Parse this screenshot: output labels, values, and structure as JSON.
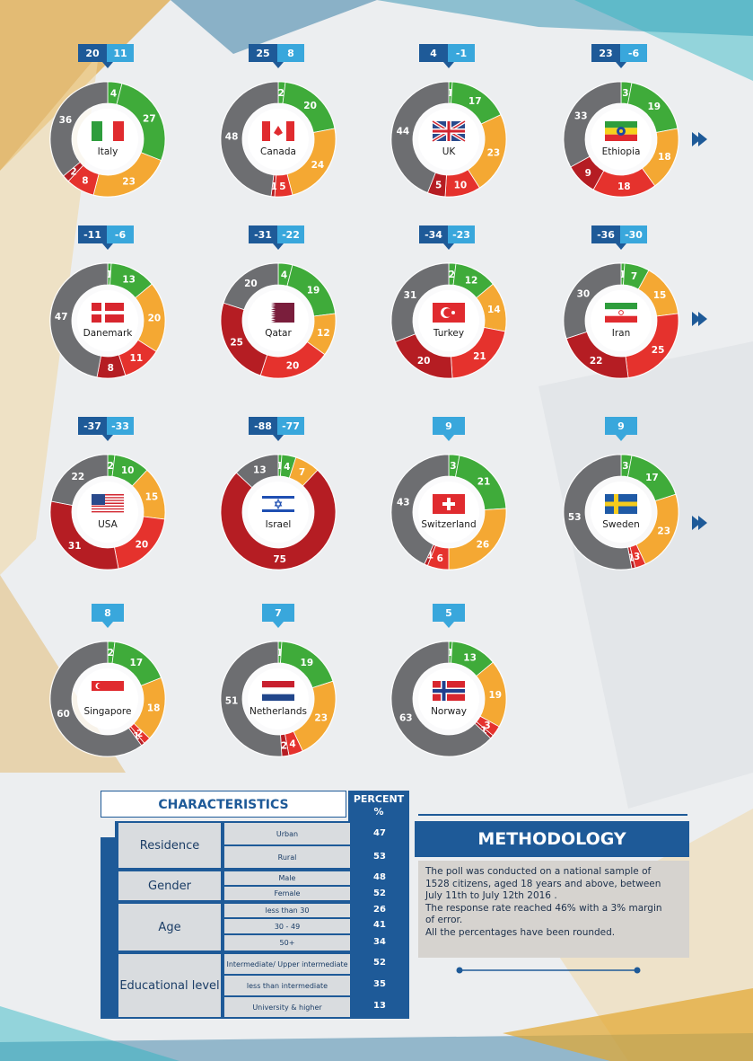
{
  "colors": {
    "green": "#3fab3a",
    "orange": "#f4a833",
    "red": "#e5322d",
    "darkred": "#b51d23",
    "gray": "#6d6e71",
    "navy": "#1e5a98",
    "lightblue": "#39a7dc"
  },
  "chart_data": [
    {
      "type": "pie",
      "country": "Italy",
      "badge": [
        "20",
        "11"
      ],
      "values": [
        4,
        27,
        23,
        8,
        2,
        36
      ],
      "flag": "italy"
    },
    {
      "type": "pie",
      "country": "Canada",
      "badge": [
        "25",
        "8"
      ],
      "values": [
        2,
        20,
        24,
        5,
        1,
        48
      ],
      "flag": "canada"
    },
    {
      "type": "pie",
      "country": "UK",
      "badge": [
        "4",
        "-1"
      ],
      "values": [
        1,
        17,
        23,
        10,
        5,
        44
      ],
      "flag": "uk"
    },
    {
      "type": "pie",
      "country": "Ethiopia",
      "badge": [
        "23",
        "-6"
      ],
      "values": [
        3,
        19,
        18,
        18,
        9,
        33
      ],
      "flag": "ethiopia"
    },
    {
      "type": "pie",
      "country": "Danemark",
      "badge": [
        "-11",
        "-6"
      ],
      "values": [
        1,
        13,
        20,
        11,
        8,
        47
      ],
      "flag": "denmark"
    },
    {
      "type": "pie",
      "country": "Qatar",
      "badge": [
        "-31",
        "-22"
      ],
      "values": [
        4,
        19,
        12,
        20,
        25,
        20
      ],
      "flag": "qatar"
    },
    {
      "type": "pie",
      "country": "Turkey",
      "badge": [
        "-34",
        "-23"
      ],
      "values": [
        2,
        12,
        14,
        21,
        20,
        31
      ],
      "flag": "turkey"
    },
    {
      "type": "pie",
      "country": "Iran",
      "badge": [
        "-36",
        "-30"
      ],
      "values": [
        1,
        7,
        15,
        25,
        22,
        30
      ],
      "flag": "iran"
    },
    {
      "type": "pie",
      "country": "USA",
      "badge": [
        "-37",
        "-33"
      ],
      "values": [
        2,
        10,
        15,
        20,
        31,
        22
      ],
      "flag": "usa"
    },
    {
      "type": "pie",
      "country": "Israel",
      "badge": [
        "-88",
        "-77"
      ],
      "values": [
        1,
        4,
        7,
        0,
        75,
        13
      ],
      "flag": "israel"
    },
    {
      "type": "pie",
      "country": "Switzerland",
      "badge": [
        "9"
      ],
      "values": [
        3,
        21,
        26,
        6,
        1,
        43
      ],
      "flag": "switzerland"
    },
    {
      "type": "pie",
      "country": "Sweden",
      "badge": [
        "9"
      ],
      "values": [
        3,
        17,
        23,
        3,
        1,
        53
      ],
      "flag": "sweden"
    },
    {
      "type": "pie",
      "country": "Singapore",
      "badge": [
        "8"
      ],
      "values": [
        2,
        17,
        18,
        2,
        1,
        60
      ],
      "flag": "singapore"
    },
    {
      "type": "pie",
      "country": "Netherlands",
      "badge": [
        "7"
      ],
      "values": [
        1,
        19,
        23,
        4,
        2,
        51
      ],
      "flag": "netherlands"
    },
    {
      "type": "pie",
      "country": "Norway",
      "badge": [
        "5"
      ],
      "values": [
        1,
        13,
        19,
        3,
        1,
        63
      ],
      "flag": "norway"
    }
  ],
  "table": {
    "header": "CHARACTERISTICS",
    "percent_header_line1": "PERCENT",
    "percent_header_line2": "%",
    "categories": [
      {
        "name": "Residence",
        "rows": [
          {
            "label": "Urban",
            "value": "47"
          },
          {
            "label": "Rural",
            "value": "53"
          }
        ]
      },
      {
        "name": "Gender",
        "rows": [
          {
            "label": "Male",
            "value": "48"
          },
          {
            "label": "Female",
            "value": "52"
          }
        ]
      },
      {
        "name": "Age",
        "rows": [
          {
            "label": "less than 30",
            "value": "26"
          },
          {
            "label": "30 - 49",
            "value": "41"
          },
          {
            "label": "50+",
            "value": "34"
          }
        ]
      },
      {
        "name": "Educational level",
        "rows": [
          {
            "label": "Intermediate/ Upper intermediate",
            "value": "52"
          },
          {
            "label": "less than intermediate",
            "value": "35"
          },
          {
            "label": "University & higher",
            "value": "13"
          }
        ]
      }
    ]
  },
  "methodology": {
    "title": "METHODOLOGY",
    "line1": "The poll was conducted on a national sample of",
    "line2": "1528 citizens, aged 18 years and above, between",
    "line3": "July 11th to July 12th 2016 .",
    "line4": "The response rate reached 46% with a 3% margin",
    "line5": "of error.",
    "line6": "All the percentages have been rounded."
  }
}
